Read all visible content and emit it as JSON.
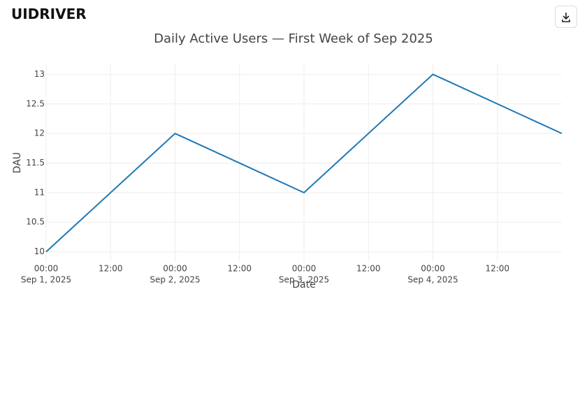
{
  "header": {
    "logo": "UIDRIVER"
  },
  "chart_data": {
    "type": "line",
    "title": "Daily Active Users — First Week of Sep 2025",
    "x_label": "Date",
    "y_label": "DAU",
    "x": [
      "2025-09-01T00:00",
      "2025-09-02T00:00",
      "2025-09-03T00:00",
      "2025-09-04T00:00",
      "2025-09-05T00:00"
    ],
    "series": [
      {
        "name": "DAU",
        "color": "#1f77b4",
        "values": [
          10,
          12,
          11,
          13,
          12
        ]
      }
    ],
    "xlim": [
      "2025-09-01T00:00",
      "2025-09-05T00:00"
    ],
    "xticks": [
      {
        "value": "2025-09-01T00:00",
        "label": [
          "00:00",
          "Sep 1, 2025"
        ]
      },
      {
        "value": "2025-09-01T12:00",
        "label": [
          "12:00"
        ]
      },
      {
        "value": "2025-09-02T00:00",
        "label": [
          "00:00",
          "Sep 2, 2025"
        ]
      },
      {
        "value": "2025-09-02T12:00",
        "label": [
          "12:00"
        ]
      },
      {
        "value": "2025-09-03T00:00",
        "label": [
          "00:00",
          "Sep 3, 2025"
        ]
      },
      {
        "value": "2025-09-03T12:00",
        "label": [
          "12:00"
        ]
      },
      {
        "value": "2025-09-04T00:00",
        "label": [
          "00:00",
          "Sep 4, 2025"
        ]
      },
      {
        "value": "2025-09-04T12:00",
        "label": [
          "12:00"
        ]
      }
    ],
    "ylim": [
      9.83,
      13.17
    ],
    "yticks": [
      10,
      10.5,
      11,
      11.5,
      12,
      12.5,
      13
    ],
    "grid": true
  }
}
